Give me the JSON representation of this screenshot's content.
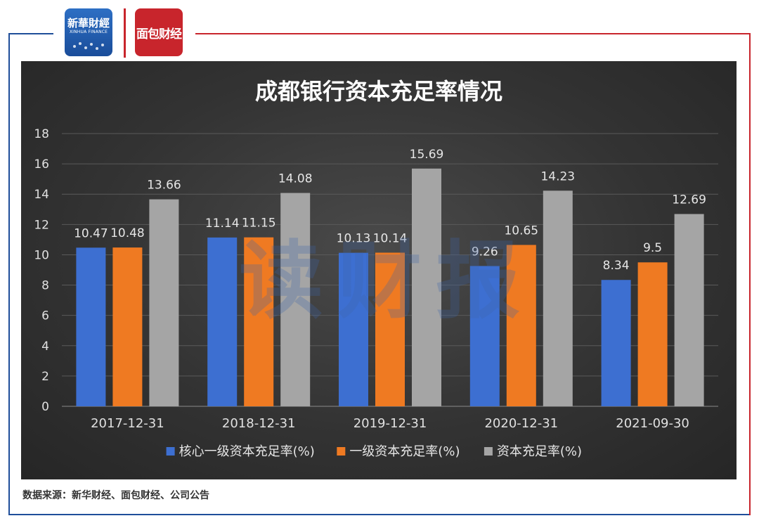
{
  "header": {
    "logo_xinhua": {
      "text_cn": "新華財經",
      "text_en": "XINHUA FINANCE"
    },
    "logo_mianbao": {
      "text_cn": "面包财经"
    },
    "frame_color_left": "#1f4e9a",
    "frame_color_right": "#c8252c"
  },
  "watermark": "读财报",
  "footer": {
    "source": "数据来源：新华财经、面包财经、公司公告"
  },
  "chart_data": {
    "type": "bar",
    "title": "成都银行资本充足率情况",
    "categories": [
      "2017-12-31",
      "2018-12-31",
      "2019-12-31",
      "2020-12-31",
      "2021-09-30"
    ],
    "series": [
      {
        "name": "核心一级资本充足率(%)",
        "color": "#3d6fd1",
        "values": [
          10.47,
          11.14,
          10.13,
          9.26,
          8.34
        ],
        "labels": [
          "10.47",
          "11.14",
          "10.13",
          "9.26",
          "8.34"
        ]
      },
      {
        "name": "一级资本充足率(%)",
        "color": "#ef7a22",
        "values": [
          10.48,
          11.15,
          10.14,
          10.65,
          9.5
        ],
        "labels": [
          "10.48",
          "11.15",
          "10.14",
          "10.65",
          "9.5"
        ]
      },
      {
        "name": "资本充足率(%)",
        "color": "#a5a5a5",
        "values": [
          13.66,
          14.08,
          15.69,
          14.23,
          12.69
        ],
        "labels": [
          "13.66",
          "14.08",
          "15.69",
          "14.23",
          "12.69"
        ]
      }
    ],
    "ylim": [
      0,
      18
    ],
    "yticks": [
      0,
      2,
      4,
      6,
      8,
      10,
      12,
      14,
      16,
      18
    ],
    "grid": true,
    "legend_position": "bottom"
  }
}
